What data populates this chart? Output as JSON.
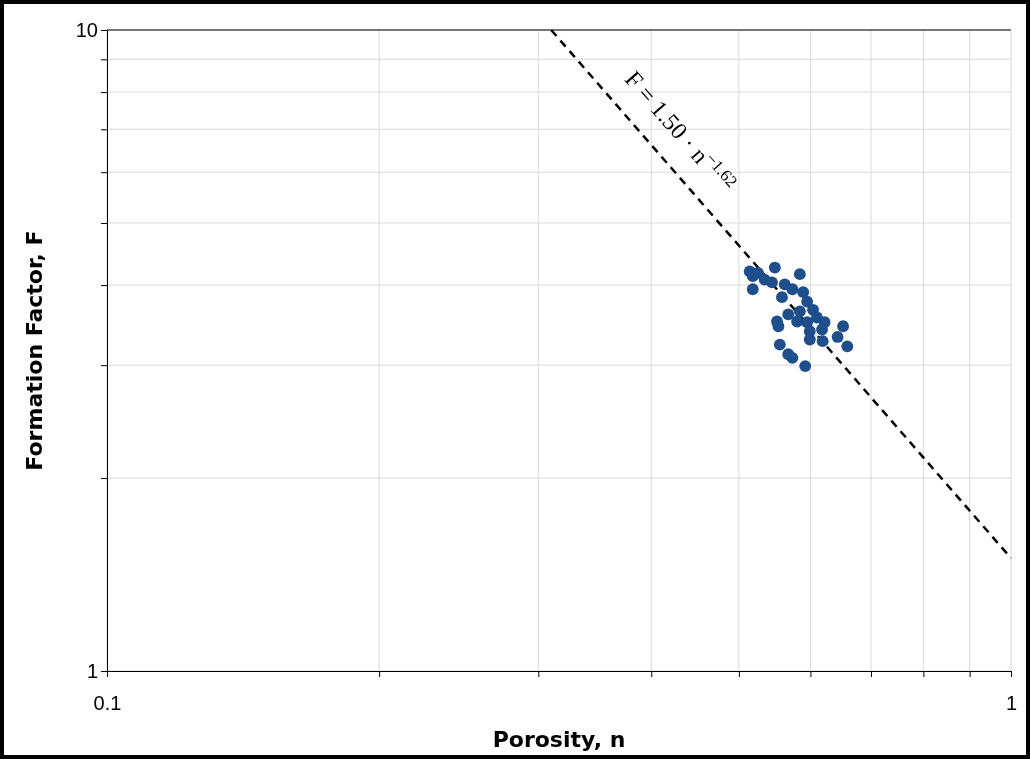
{
  "chart_data": {
    "type": "scatter",
    "xlabel": "Porosity, n",
    "ylabel": "Formation Factor, F",
    "log": "xy",
    "grid": true,
    "xlim": [
      0.1,
      1
    ],
    "ylim": [
      1,
      10
    ],
    "xticks": [
      0.1,
      {
        "value": 0.2,
        "label": null
      },
      {
        "value": 0.3,
        "label": null
      },
      {
        "value": 0.4,
        "label": null
      },
      {
        "value": 0.5,
        "label": null
      },
      {
        "value": 0.6,
        "label": null
      },
      {
        "value": 0.7,
        "label": null
      },
      {
        "value": 0.8,
        "label": null
      },
      {
        "value": 0.9,
        "label": null
      },
      1
    ],
    "yticks": [
      1,
      {
        "value": 2,
        "label": null
      },
      {
        "value": 3,
        "label": null
      },
      {
        "value": 4,
        "label": null
      },
      {
        "value": 5,
        "label": null
      },
      {
        "value": 6,
        "label": null
      },
      {
        "value": 7,
        "label": null
      },
      {
        "value": 8,
        "label": null
      },
      {
        "value": 9,
        "label": null
      },
      10
    ],
    "annotations": [
      "F = 1.50 · n$^{−1.62}$"
    ],
    "series": [
      {
        "color": "#1f4e8c",
        "marker": "circle",
        "x": [
          0.514,
          0.518,
          0.525,
          0.548,
          0.584,
          0.518,
          0.534,
          0.544,
          0.562,
          0.573,
          0.589,
          0.595,
          0.558,
          0.584,
          0.604,
          0.61,
          0.551,
          0.567,
          0.553,
          0.58,
          0.595,
          0.599,
          0.622,
          0.618,
          0.599,
          0.619,
          0.652,
          0.643,
          0.659,
          0.555,
          0.567,
          0.573,
          0.592
        ],
        "values": [
          4.2,
          4.13,
          4.18,
          4.26,
          4.16,
          3.94,
          4.08,
          4.04,
          4.01,
          3.94,
          3.9,
          3.77,
          3.83,
          3.64,
          3.66,
          3.56,
          3.51,
          3.6,
          3.45,
          3.51,
          3.5,
          3.39,
          3.5,
          3.41,
          3.29,
          3.27,
          3.45,
          3.32,
          3.21,
          3.23,
          3.12,
          3.08,
          2.99
        ]
      },
      {
        "type": "line",
        "color": "#000000",
        "marker": "none",
        "line_style": "dashed",
        "x": [
          0.31,
          1
        ],
        "values": [
          10,
          1.5
        ]
      }
    ]
  }
}
